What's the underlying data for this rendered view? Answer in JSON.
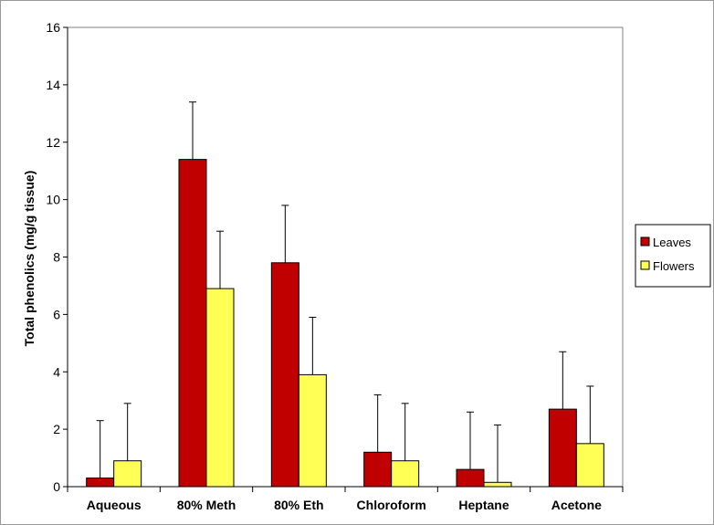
{
  "chart_data": {
    "type": "bar",
    "title": "",
    "xlabel": "",
    "ylabel": "Total phenolics (mg/g tissue)",
    "ylim": [
      0,
      16
    ],
    "yticks": [
      0,
      2,
      4,
      6,
      8,
      10,
      12,
      14,
      16
    ],
    "grid": false,
    "legend_position": "right",
    "categories": [
      "Aqueous",
      "80% Meth",
      "80% Eth",
      "Chloroform",
      "Heptane",
      "Acetone"
    ],
    "series": [
      {
        "name": "Leaves",
        "color": "#c00000",
        "values": [
          0.3,
          11.4,
          7.8,
          1.2,
          0.6,
          2.7
        ],
        "errors": [
          2.0,
          2.0,
          2.0,
          2.0,
          2.0,
          2.0
        ]
      },
      {
        "name": "Flowers",
        "color": "#ffff55",
        "values": [
          0.9,
          6.9,
          3.9,
          0.9,
          0.15,
          1.5
        ],
        "errors": [
          2.0,
          2.0,
          2.0,
          2.0,
          2.0,
          2.0
        ]
      }
    ]
  }
}
